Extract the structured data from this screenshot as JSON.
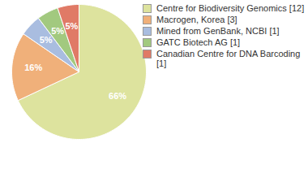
{
  "chart_data": {
    "type": "pie",
    "categories": [
      "Centre for Biodiversity Genomics [12]",
      "Macrogen, Korea [3]",
      "Mined from GenBank, NCBI [1]",
      "GATC Biotech AG [1]",
      "Canadian Centre for DNA Barcoding [1]"
    ],
    "values": [
      66,
      16,
      5,
      5,
      5
    ],
    "value_labels": [
      "66%",
      "16%",
      "5%",
      "5%",
      "5%"
    ],
    "colors": [
      "#dde39e",
      "#f0b07a",
      "#a9bde0",
      "#a2c97f",
      "#e07a66"
    ],
    "data_labels": true,
    "legend": "right"
  }
}
